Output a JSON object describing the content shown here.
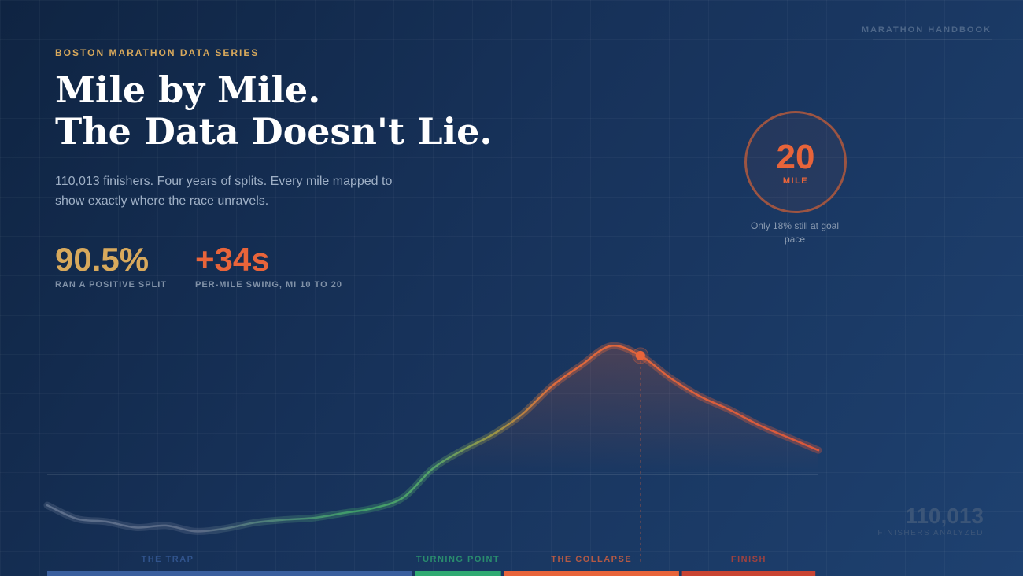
{
  "header": {
    "brand": "MARATHON HANDBOOK",
    "kicker": "BOSTON MARATHON DATA SERIES",
    "title_line1": "Mile by Mile.",
    "title_line2": "The Data Doesn't Lie.",
    "subtitle": "110,013 finishers. Four years of splits. Every mile mapped to show exactly where the race unravels."
  },
  "stats": [
    {
      "value": "90.5%",
      "label": "RAN A POSITIVE SPLIT"
    },
    {
      "value": "+34s",
      "label": "PER-MILE SWING, MI 10 TO 20"
    }
  ],
  "callout": {
    "value": "20",
    "unit": "MILE",
    "note": "Only 18% still at goal pace"
  },
  "corner": {
    "value": "110,013",
    "label": "FINISHERS ANALYZED"
  },
  "colors": {
    "gold": "#d8a95c",
    "orange": "#e8643a",
    "blue": "#3a5f9e",
    "green": "#2faa72",
    "red": "#c94432"
  },
  "chart_data": {
    "type": "line",
    "xlabel": "",
    "ylabel": "",
    "x": [
      0,
      1,
      2,
      3,
      4,
      5,
      6,
      7,
      8,
      9,
      10,
      11,
      12,
      13,
      14,
      15,
      16,
      17,
      18,
      19,
      20,
      21,
      22,
      23,
      24,
      25,
      26
    ],
    "y": [
      -1,
      -15,
      -18,
      -24,
      -22,
      -28,
      -25,
      -19,
      -16,
      -14,
      -9,
      -4,
      7,
      37,
      56,
      72,
      93,
      122,
      144,
      164,
      154,
      131,
      112,
      98,
      82,
      69,
      56
    ],
    "ylim": [
      -40,
      180
    ],
    "xlim": [
      0,
      26
    ],
    "highlight": {
      "x": 20
    },
    "phases": [
      {
        "label": "THE TRAP",
        "start": 0,
        "end": 12.3,
        "color": "#3a5f9e"
      },
      {
        "label": "TURNING POINT",
        "start": 12.4,
        "end": 15.3,
        "color": "#2faa72"
      },
      {
        "label": "THE COLLAPSE",
        "start": 15.4,
        "end": 21.3,
        "color": "#e8643a"
      },
      {
        "label": "FINISH",
        "start": 21.4,
        "end": 25.9,
        "color": "#c94432"
      }
    ]
  }
}
